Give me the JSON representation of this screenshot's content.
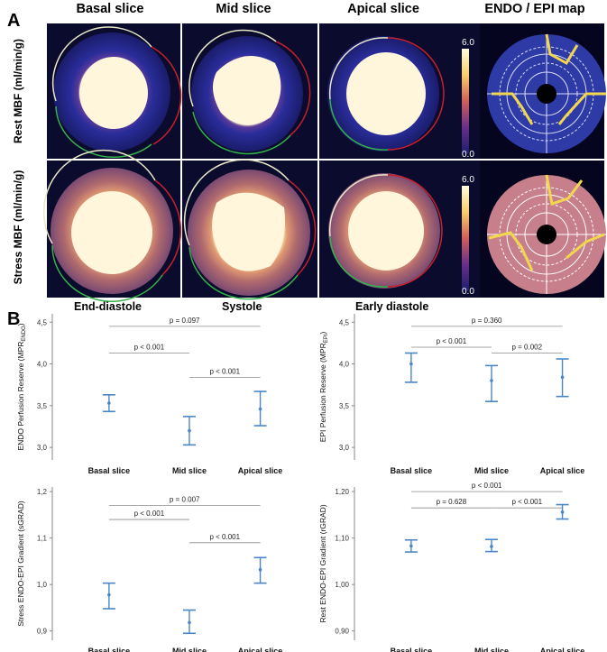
{
  "panel_a": {
    "letter": "A",
    "columns": [
      "Basal slice",
      "Mid slice",
      "Apical slice",
      "ENDO / EPI map"
    ],
    "rows": [
      "Rest MBF (ml/min/g)",
      "Stress MBF (ml/min/g)"
    ],
    "colorbar": {
      "max": "6.0",
      "min": "0.0"
    },
    "phases": [
      "End-diastole",
      "Systole",
      "Early diastole"
    ],
    "colors": {
      "background": "#0b0b2e",
      "myocardium_rest": "#2a2d9a",
      "myocardium_stress": "#b06a6e",
      "blood_pool": "#fff6dc",
      "endo_contour": "#e8e8c8",
      "green_contour": "#33b04a",
      "red_contour": "#c4202c",
      "polar_rest": "#2e3aa6",
      "polar_stress": "#c77f8b",
      "polar_lines": "#f2d64b"
    }
  },
  "panel_b": {
    "letter": "B",
    "charts": [
      {
        "ylabel": "ENDO Perfusion Reserve (MPR",
        "ylabel_sub": "ENDO",
        "yticks": [
          "3,0",
          "3,5",
          "4,0",
          "4,5"
        ],
        "ylim": [
          2.85,
          4.6
        ],
        "categories": [
          "Basal slice",
          "Mid slice",
          "Apical slice"
        ],
        "means": [
          3.53,
          3.2,
          3.46
        ],
        "lower": [
          3.43,
          3.03,
          3.26
        ],
        "upper": [
          3.63,
          3.37,
          3.67
        ],
        "comparisons": [
          {
            "pair": [
              0,
              2
            ],
            "label": "p = 0.097",
            "y": 4.45
          },
          {
            "pair": [
              0,
              1
            ],
            "label": "p < 0.001",
            "y": 4.13
          },
          {
            "pair": [
              1,
              2
            ],
            "label": "p < 0.001",
            "y": 3.84
          }
        ]
      },
      {
        "ylabel": "EPI Perfusion Reserve (MPR",
        "ylabel_sub": "EPI",
        "yticks": [
          "3,0",
          "3,5",
          "4,0",
          "4,5"
        ],
        "ylim": [
          2.85,
          4.6
        ],
        "categories": [
          "Basal slice",
          "Mid slice",
          "Apical slice"
        ],
        "means": [
          4.0,
          3.8,
          3.84
        ],
        "lower": [
          3.78,
          3.55,
          3.61
        ],
        "upper": [
          4.13,
          3.98,
          4.06
        ],
        "comparisons": [
          {
            "pair": [
              0,
              2
            ],
            "label": "p = 0.360",
            "y": 4.45
          },
          {
            "pair": [
              0,
              1
            ],
            "label": "p < 0.001",
            "y": 4.2
          },
          {
            "pair": [
              1,
              2
            ],
            "label": "p = 0.002",
            "y": 4.13
          }
        ]
      },
      {
        "ylabel": "Stress ENDO-EPI Gradient (sGRAD)",
        "ylabel_sub": "",
        "yticks": [
          "0,9",
          "1,0",
          "1,1",
          "1,2"
        ],
        "ylim": [
          0.88,
          1.21
        ],
        "categories": [
          "Basal slice",
          "Mid slice",
          "Apical slice"
        ],
        "means": [
          0.978,
          0.918,
          1.032
        ],
        "lower": [
          0.948,
          0.895,
          1.003
        ],
        "upper": [
          1.003,
          0.945,
          1.058
        ],
        "comparisons": [
          {
            "pair": [
              0,
              2
            ],
            "label": "p = 0.007",
            "y": 1.17
          },
          {
            "pair": [
              0,
              1
            ],
            "label": "p < 0.001",
            "y": 1.14
          },
          {
            "pair": [
              1,
              2
            ],
            "label": "p < 0.001",
            "y": 1.09
          }
        ]
      },
      {
        "ylabel": "Rest ENDO-EPI Gradient (rGRAD)",
        "ylabel_sub": "",
        "yticks": [
          "0,90",
          "1,00",
          "1,10",
          "1,20"
        ],
        "ylim": [
          0.88,
          1.21
        ],
        "categories": [
          "Basal slice",
          "Mid slice",
          "Apical slice"
        ],
        "means": [
          1.083,
          1.082,
          1.156
        ],
        "lower": [
          1.07,
          1.071,
          1.141
        ],
        "upper": [
          1.096,
          1.097,
          1.172
        ],
        "comparisons": [
          {
            "pair": [
              0,
              2
            ],
            "label": "p < 0.001",
            "y": 1.2
          },
          {
            "pair": [
              0,
              1
            ],
            "label": "p = 0.628",
            "y": 1.165
          },
          {
            "pair": [
              1,
              2
            ],
            "label": "p < 0.001",
            "y": 1.165
          }
        ]
      }
    ],
    "colors": {
      "bar": "#4a86c5",
      "line": "#8a8a8a"
    }
  },
  "chart_data": [
    {
      "type": "scatter",
      "title": "ENDO Perfusion Reserve",
      "ylabel": "ENDO Perfusion Reserve (MPR ENDO)",
      "categories": [
        "Basal slice",
        "Mid slice",
        "Apical slice"
      ],
      "series": [
        {
          "name": "mean",
          "values": [
            3.53,
            3.2,
            3.46
          ]
        },
        {
          "name": "CI lower",
          "values": [
            3.43,
            3.03,
            3.26
          ]
        },
        {
          "name": "CI upper",
          "values": [
            3.63,
            3.37,
            3.67
          ]
        }
      ],
      "ylim": [
        2.85,
        4.6
      ],
      "annotations": [
        "p = 0.097",
        "p < 0.001",
        "p < 0.001"
      ]
    },
    {
      "type": "scatter",
      "title": "EPI Perfusion Reserve",
      "ylabel": "EPI Perfusion Reserve (MPR EPI)",
      "categories": [
        "Basal slice",
        "Mid slice",
        "Apical slice"
      ],
      "series": [
        {
          "name": "mean",
          "values": [
            4.0,
            3.8,
            3.84
          ]
        },
        {
          "name": "CI lower",
          "values": [
            3.78,
            3.55,
            3.61
          ]
        },
        {
          "name": "CI upper",
          "values": [
            4.13,
            3.98,
            4.06
          ]
        }
      ],
      "ylim": [
        2.85,
        4.6
      ],
      "annotations": [
        "p = 0.360",
        "p < 0.001",
        "p = 0.002"
      ]
    },
    {
      "type": "scatter",
      "title": "Stress ENDO-EPI Gradient",
      "ylabel": "Stress ENDO-EPI Gradient (sGRAD)",
      "categories": [
        "Basal slice",
        "Mid slice",
        "Apical slice"
      ],
      "series": [
        {
          "name": "mean",
          "values": [
            0.978,
            0.918,
            1.032
          ]
        },
        {
          "name": "CI lower",
          "values": [
            0.948,
            0.895,
            1.003
          ]
        },
        {
          "name": "CI upper",
          "values": [
            1.003,
            0.945,
            1.058
          ]
        }
      ],
      "ylim": [
        0.88,
        1.21
      ],
      "annotations": [
        "p = 0.007",
        "p < 0.001",
        "p < 0.001"
      ]
    },
    {
      "type": "scatter",
      "title": "Rest ENDO-EPI Gradient",
      "ylabel": "Rest ENDO-EPI Gradient (rGRAD)",
      "categories": [
        "Basal slice",
        "Mid slice",
        "Apical slice"
      ],
      "series": [
        {
          "name": "mean",
          "values": [
            1.083,
            1.082,
            1.156
          ]
        },
        {
          "name": "CI lower",
          "values": [
            1.07,
            1.071,
            1.141
          ]
        },
        {
          "name": "CI upper",
          "values": [
            1.096,
            1.097,
            1.172
          ]
        }
      ],
      "ylim": [
        0.88,
        1.21
      ],
      "annotations": [
        "p < 0.001",
        "p = 0.628",
        "p < 0.001"
      ]
    }
  ]
}
